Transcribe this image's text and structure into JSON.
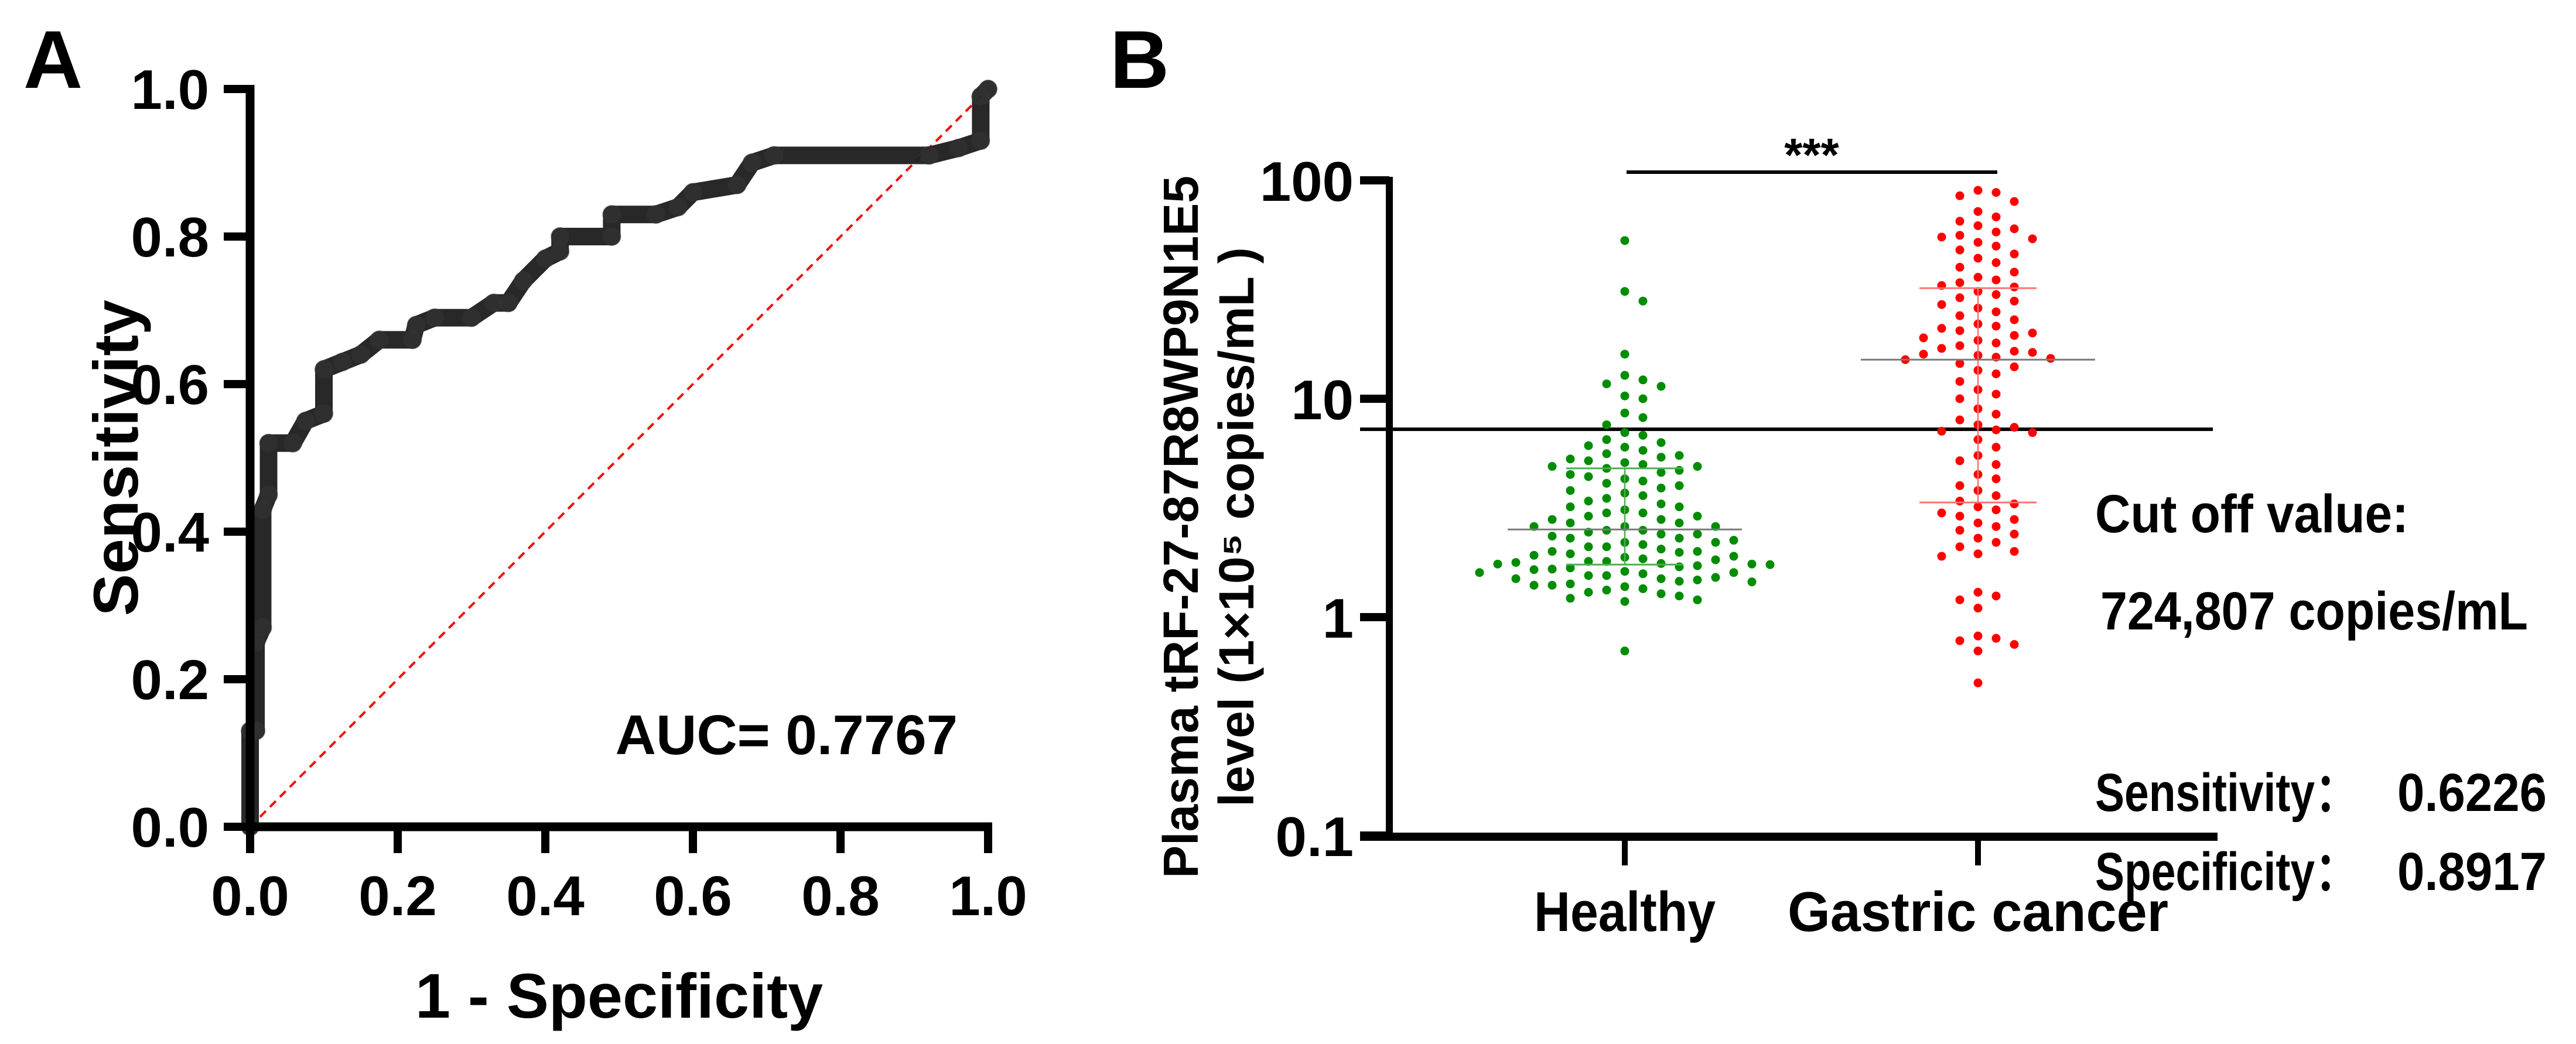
{
  "panels": {
    "a_letter": "A",
    "b_letter": "B"
  },
  "colors": {
    "healthy": "#008c00",
    "cancer": "#ff0000",
    "healthy_iqr": "#4caf50",
    "cancer_iqr": "#ff7070",
    "median": "#7a7a7a",
    "roc": "#1c1c1c",
    "diagonal": "#ff0000"
  },
  "chart_data": [
    {
      "type": "line",
      "title": "",
      "xlabel": "1 - Specificity",
      "ylabel": "Sensitivity",
      "xlim": [
        0,
        1
      ],
      "ylim": [
        0,
        1
      ],
      "x_ticks": [
        "0.0",
        "0.2",
        "0.4",
        "0.6",
        "0.8",
        "1.0"
      ],
      "y_ticks": [
        "0.0",
        "0.2",
        "0.4",
        "0.6",
        "0.8",
        "1.0"
      ],
      "annotation": "AUC= 0.7767",
      "series": [
        {
          "name": "ROC",
          "x": [
            0,
            0,
            0.008,
            0.008,
            0.017,
            0.017,
            0.025,
            0.025,
            0.058,
            0.075,
            0.1,
            0.1,
            0.125,
            0.15,
            0.175,
            0.22,
            0.225,
            0.25,
            0.3,
            0.33,
            0.35,
            0.37,
            0.4,
            0.42,
            0.42,
            0.49,
            0.49,
            0.55,
            0.58,
            0.6,
            0.66,
            0.68,
            0.71,
            0.92,
            0.96,
            0.99,
            0.99,
            1
          ],
          "y": [
            0,
            0.13,
            0.13,
            0.25,
            0.27,
            0.43,
            0.45,
            0.52,
            0.52,
            0.55,
            0.56,
            0.62,
            0.63,
            0.64,
            0.66,
            0.66,
            0.68,
            0.69,
            0.69,
            0.71,
            0.71,
            0.74,
            0.77,
            0.78,
            0.8,
            0.8,
            0.83,
            0.83,
            0.84,
            0.86,
            0.87,
            0.9,
            0.91,
            0.91,
            0.92,
            0.93,
            0.99,
            1
          ]
        },
        {
          "name": "Reference",
          "x": [
            0,
            1
          ],
          "y": [
            0,
            1
          ]
        }
      ],
      "grid": false
    },
    {
      "type": "scatter",
      "title": "",
      "ylabel_line1": "Plasma  tRF-27-87R8WP9N1E5",
      "ylabel_line2": "level (1×10⁵ copies/mL )",
      "yscale": "log",
      "ylim": [
        0.1,
        100
      ],
      "y_ticks": [
        "0.1",
        "1",
        "10",
        "100"
      ],
      "y_tick_values": [
        0.1,
        1,
        10,
        100
      ],
      "categories": [
        "Healthy",
        "Gastric cancer"
      ],
      "significance": "***",
      "cutoff_value": 7.248,
      "cutoff_text": "Cut off value:",
      "cutoff_amount": "724,807 copies/mL",
      "sensitivity_label": "Sensitivity：",
      "sensitivity_value": "0.6226",
      "specificity_label": "Specificity：",
      "specificity_value": "0.8917",
      "series": [
        {
          "name": "Healthy",
          "median": 2.52,
          "q1": 1.74,
          "q3": 4.8,
          "values": [
            53,
            31,
            28,
            16,
            12.8,
            12.2,
            11.7,
            11.4,
            10.3,
            10,
            8.6,
            8.2,
            7.6,
            7.0,
            6.8,
            6.5,
            6.3,
            6.1,
            6.0,
            5.8,
            5.6,
            5.5,
            5.4,
            5.3,
            5.2,
            5.1,
            5.0,
            4.9,
            4.9,
            4.8,
            4.7,
            4.6,
            4.5,
            4.4,
            4.3,
            4.2,
            4.1,
            4.0,
            3.9,
            3.8,
            3.7,
            3.6,
            3.5,
            3.4,
            3.3,
            3.2,
            3.2,
            3.1,
            3.0,
            3.0,
            2.9,
            2.9,
            2.8,
            2.8,
            2.7,
            2.7,
            2.6,
            2.6,
            2.6,
            2.5,
            2.5,
            2.45,
            2.4,
            2.4,
            2.35,
            2.3,
            2.3,
            2.25,
            2.2,
            2.2,
            2.15,
            2.1,
            2.1,
            2.05,
            2.0,
            2.0,
            1.98,
            1.95,
            1.92,
            1.9,
            1.88,
            1.85,
            1.83,
            1.8,
            1.8,
            1.78,
            1.76,
            1.75,
            1.75,
            1.74,
            1.72,
            1.7,
            1.68,
            1.66,
            1.65,
            1.62,
            1.6,
            1.6,
            1.58,
            1.55,
            1.55,
            1.52,
            1.5,
            1.5,
            1.48,
            1.46,
            1.45,
            1.42,
            1.4,
            1.4,
            1.38,
            1.35,
            1.33,
            1.3,
            1.28,
            1.25,
            1.22,
            1.2,
            1.18,
            0.7
          ]
        },
        {
          "name": "Gastric cancer",
          "median": 15.1,
          "q1": 3.35,
          "q3": 32.1,
          "values": [
            90,
            88,
            85,
            80,
            72,
            68,
            65,
            62,
            60,
            58,
            56,
            55,
            54,
            52,
            50,
            48,
            46,
            44,
            42,
            40,
            38,
            36,
            35,
            34,
            33,
            32.5,
            31,
            30,
            29,
            28,
            27,
            26,
            25,
            24,
            23,
            22,
            21.5,
            21,
            20.5,
            20,
            19.5,
            19,
            18.5,
            18,
            17.5,
            17,
            16.5,
            16.3,
            16,
            15.8,
            15.5,
            15.3,
            15.1,
            14.5,
            14,
            13.5,
            13,
            12,
            11,
            10.5,
            10,
            9,
            8.5,
            8,
            7.6,
            7.4,
            7.2,
            7.1,
            7.0,
            6.5,
            6.0,
            5.5,
            5.2,
            5.0,
            4.5,
            4.3,
            4.0,
            3.8,
            3.6,
            3.4,
            3.3,
            3.2,
            3.1,
            3.0,
            2.9,
            2.8,
            2.7,
            2.6,
            2.5,
            2.4,
            2.3,
            2.2,
            2.1,
            2.0,
            1.95,
            1.9,
            1.3,
            1.25,
            1.2,
            1.1,
            0.82,
            0.8,
            0.78,
            0.75,
            0.7,
            0.5
          ]
        }
      ]
    }
  ]
}
